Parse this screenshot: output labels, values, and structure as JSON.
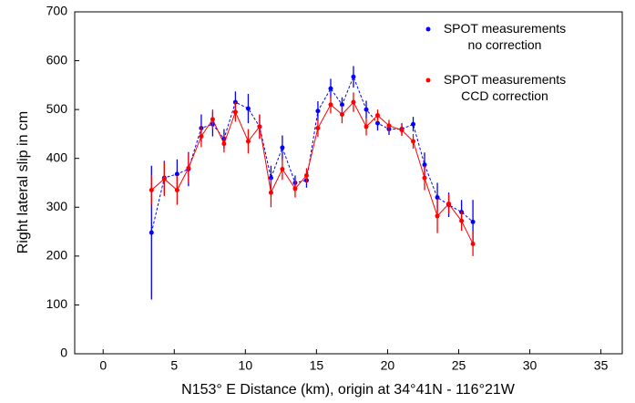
{
  "chart_data": {
    "type": "errorbar-line",
    "xlabel": "N153° E Distance (km), origin at 34°41N - 116°21W",
    "ylabel": "Right lateral slip in cm",
    "xlim": [
      -2,
      36.5
    ],
    "ylim": [
      0,
      700
    ],
    "xticks": [
      0,
      5,
      10,
      15,
      20,
      25,
      30,
      35
    ],
    "yticks": [
      0,
      100,
      200,
      300,
      400,
      500,
      600,
      700
    ],
    "legend": "upper right",
    "x": [
      3.4,
      4.3,
      5.2,
      6.0,
      6.9,
      7.7,
      8.5,
      9.3,
      10.2,
      11.0,
      11.8,
      12.6,
      13.5,
      14.3,
      15.1,
      16.0,
      16.8,
      17.6,
      18.5,
      19.3,
      20.1,
      21.0,
      21.8,
      22.6,
      23.5,
      24.3,
      25.2,
      26.0
    ],
    "series": [
      {
        "name": "SPOT measurements\nno correction",
        "color": "#0000ff",
        "values": [
          248,
          360,
          368,
          378,
          462,
          470,
          440,
          515,
          502,
          465,
          360,
          422,
          350,
          355,
          497,
          543,
          510,
          567,
          500,
          472,
          460,
          460,
          470,
          387,
          320,
          305,
          290,
          270
        ],
        "errors": [
          137,
          35,
          30,
          35,
          28,
          25,
          20,
          22,
          30,
          25,
          25,
          25,
          15,
          15,
          20,
          20,
          15,
          22,
          18,
          15,
          12,
          12,
          15,
          25,
          30,
          25,
          25,
          45
        ]
      },
      {
        "name": "SPOT measurements\nCCD correction",
        "color": "#ff0000",
        "values": [
          335,
          358,
          335,
          380,
          445,
          480,
          430,
          495,
          435,
          465,
          330,
          378,
          338,
          365,
          462,
          510,
          490,
          515,
          465,
          488,
          467,
          458,
          435,
          360,
          282,
          307,
          272,
          225
        ],
        "errors": [
          30,
          35,
          30,
          30,
          22,
          20,
          18,
          20,
          25,
          25,
          30,
          22,
          18,
          15,
          18,
          18,
          18,
          20,
          18,
          12,
          12,
          12,
          15,
          25,
          35,
          20,
          20,
          25
        ]
      }
    ]
  }
}
